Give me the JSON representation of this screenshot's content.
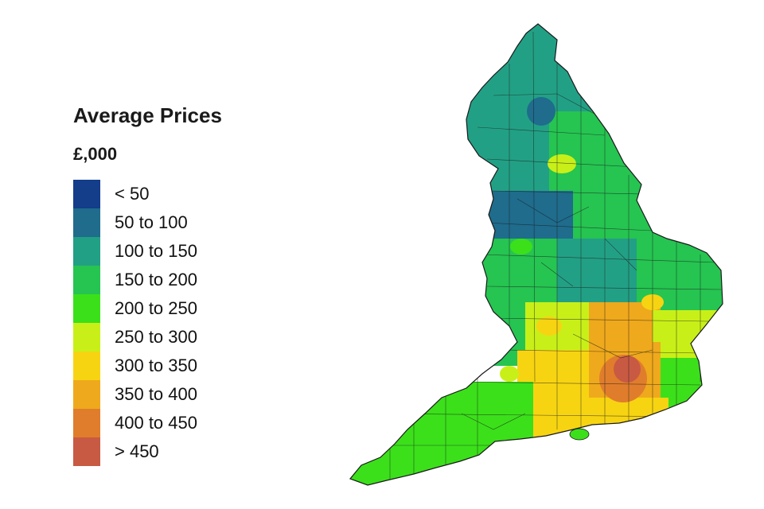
{
  "legend": {
    "title": "Average Prices",
    "subtitle": "£,000",
    "bins": [
      {
        "label": "< 50",
        "color": "#143d8a"
      },
      {
        "label": "50 to 100",
        "color": "#1f6c8d"
      },
      {
        "label": "100 to 150",
        "color": "#22a085"
      },
      {
        "label": "150 to 200",
        "color": "#26c451"
      },
      {
        "label": "200 to 250",
        "color": "#3be01a"
      },
      {
        "label": "250 to 300",
        "color": "#c8f018"
      },
      {
        "label": "300 to 350",
        "color": "#f7d412"
      },
      {
        "label": "350 to 400",
        "color": "#efa91c"
      },
      {
        "label": "400 to 450",
        "color": "#e07d2c"
      },
      {
        "label": "> 450",
        "color": "#c85a43"
      }
    ]
  }
}
